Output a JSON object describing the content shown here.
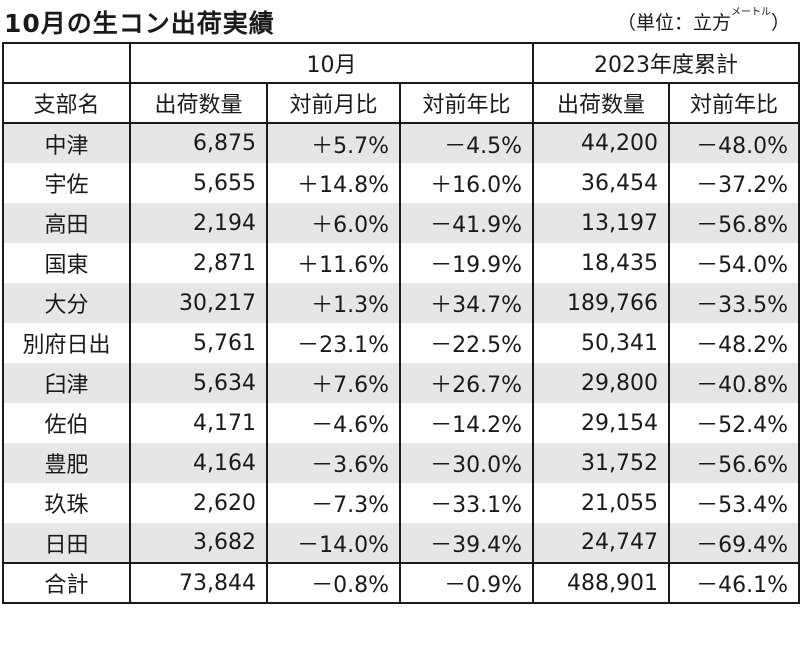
{
  "title": "10月の生コン出荷実績",
  "unit_prefix": "（単位：立方",
  "unit_small": "メートル",
  "unit_suffix": "）",
  "header": {
    "group_month": "10月",
    "group_ytd": "2023年度累計",
    "col_branch": "支部名",
    "col_month_qty": "出荷数量",
    "col_month_mom": "対前月比",
    "col_month_yoy": "対前年比",
    "col_ytd_qty": "出荷数量",
    "col_ytd_yoy": "対前年比"
  },
  "rows": [
    {
      "branch": "中津",
      "qty": "6,875",
      "mom": "＋5.7%",
      "yoy": "－4.5%",
      "ytd_qty": "44,200",
      "ytd_yoy": "－48.0%"
    },
    {
      "branch": "宇佐",
      "qty": "5,655",
      "mom": "＋14.8%",
      "yoy": "＋16.0%",
      "ytd_qty": "36,454",
      "ytd_yoy": "－37.2%"
    },
    {
      "branch": "高田",
      "qty": "2,194",
      "mom": "＋6.0%",
      "yoy": "－41.9%",
      "ytd_qty": "13,197",
      "ytd_yoy": "－56.8%"
    },
    {
      "branch": "国東",
      "qty": "2,871",
      "mom": "＋11.6%",
      "yoy": "－19.9%",
      "ytd_qty": "18,435",
      "ytd_yoy": "－54.0%"
    },
    {
      "branch": "大分",
      "qty": "30,217",
      "mom": "＋1.3%",
      "yoy": "＋34.7%",
      "ytd_qty": "189,766",
      "ytd_yoy": "－33.5%"
    },
    {
      "branch": "別府日出",
      "qty": "5,761",
      "mom": "－23.1%",
      "yoy": "－22.5%",
      "ytd_qty": "50,341",
      "ytd_yoy": "－48.2%"
    },
    {
      "branch": "臼津",
      "qty": "5,634",
      "mom": "＋7.6%",
      "yoy": "＋26.7%",
      "ytd_qty": "29,800",
      "ytd_yoy": "－40.8%"
    },
    {
      "branch": "佐伯",
      "qty": "4,171",
      "mom": "－4.6%",
      "yoy": "－14.2%",
      "ytd_qty": "29,154",
      "ytd_yoy": "－52.4%"
    },
    {
      "branch": "豊肥",
      "qty": "4,164",
      "mom": "－3.6%",
      "yoy": "－30.0%",
      "ytd_qty": "31,752",
      "ytd_yoy": "－56.6%"
    },
    {
      "branch": "玖珠",
      "qty": "2,620",
      "mom": "－7.3%",
      "yoy": "－33.1%",
      "ytd_qty": "21,055",
      "ytd_yoy": "－53.4%"
    },
    {
      "branch": "日田",
      "qty": "3,682",
      "mom": "－14.0%",
      "yoy": "－39.4%",
      "ytd_qty": "24,747",
      "ytd_yoy": "－69.4%"
    }
  ],
  "total": {
    "branch": "合計",
    "qty": "73,844",
    "mom": "－0.8%",
    "yoy": "－0.9%",
    "ytd_qty": "488,901",
    "ytd_yoy": "－46.1%"
  },
  "colors": {
    "band": "#e6e6e6",
    "border": "#1a1a1a"
  }
}
